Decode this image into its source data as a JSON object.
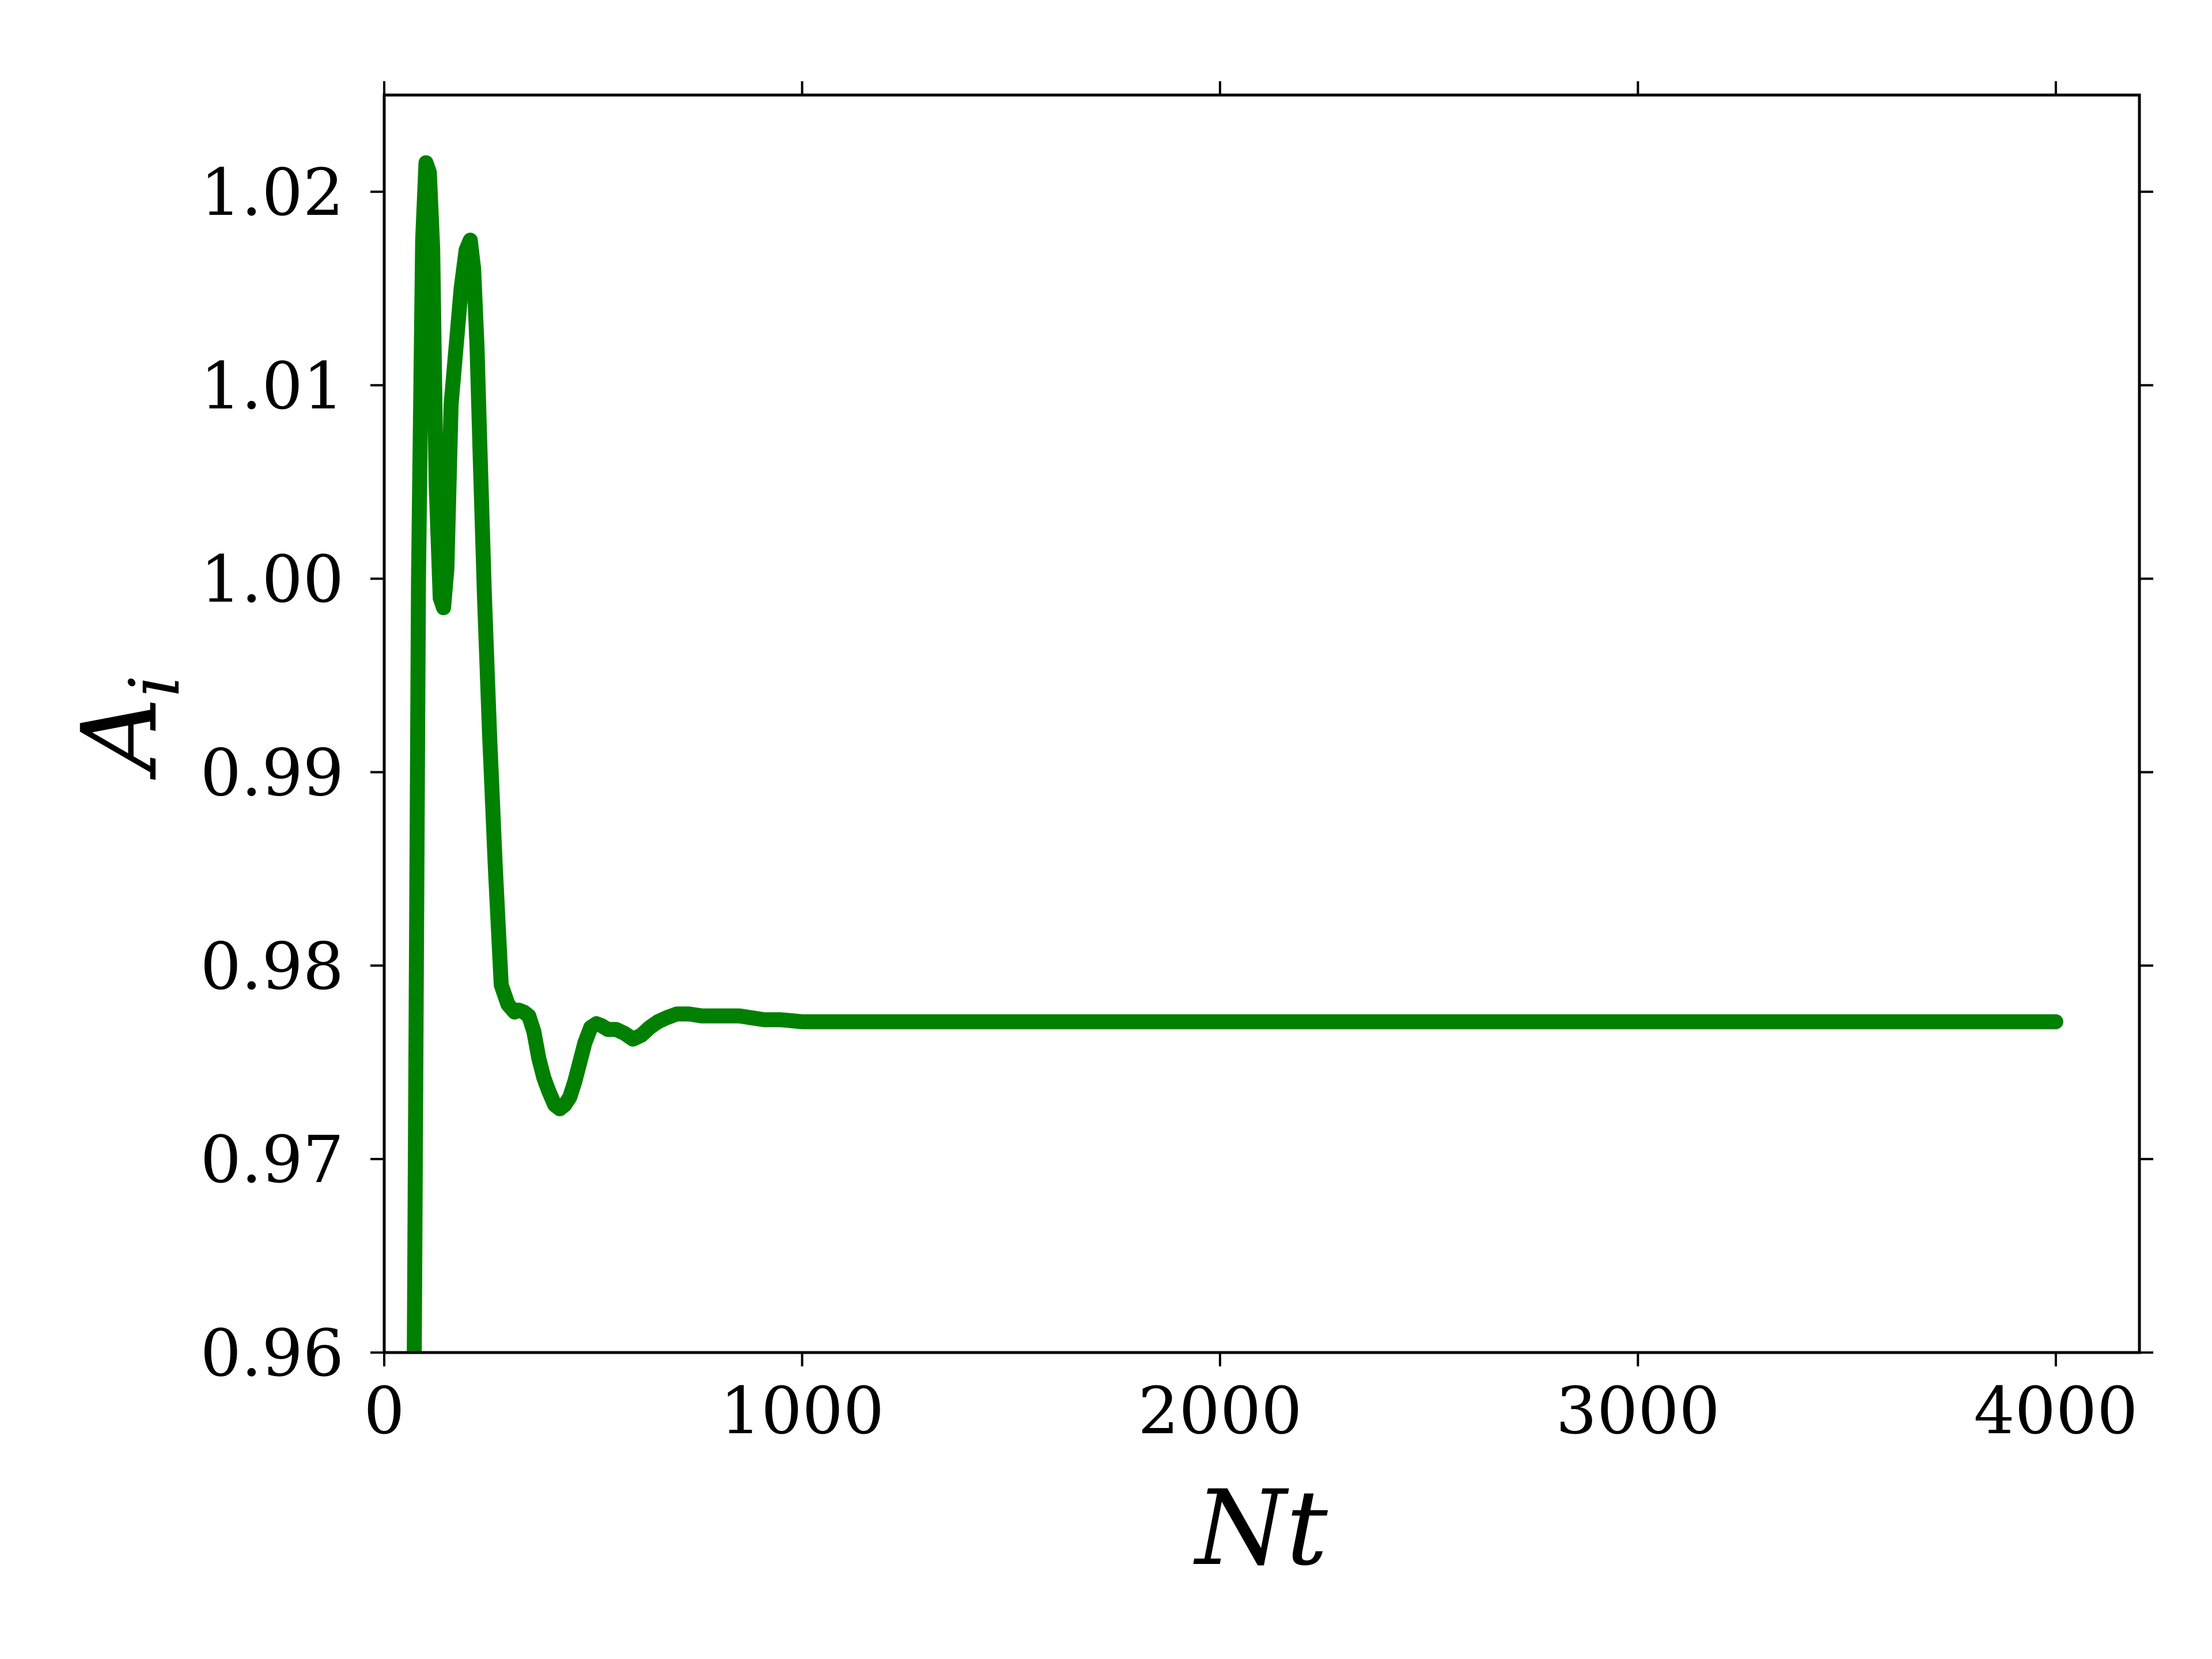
{
  "chart_data": {
    "type": "line",
    "xlabel": "Nt",
    "ylabel": "A",
    "ylabel_subscript": "i",
    "xlim": [
      0,
      4200
    ],
    "ylim": [
      0.96,
      1.025
    ],
    "x_ticks": [
      0,
      1000,
      2000,
      3000,
      4000
    ],
    "x_tick_labels": [
      "0",
      "1000",
      "2000",
      "3000",
      "4000"
    ],
    "y_ticks": [
      0.96,
      0.97,
      0.98,
      0.99,
      1.0,
      1.01,
      1.02
    ],
    "y_tick_labels": [
      "0.96",
      "0.97",
      "0.98",
      "0.99",
      "1.00",
      "1.01",
      "1.02"
    ],
    "grid": false,
    "line_color": "#008000",
    "series": [
      {
        "x": [
          60,
          72,
          82,
          92,
          100,
          108,
          116,
          124,
          134,
          142,
          150,
          160,
          172,
          184,
          196,
          206,
          214,
          222,
          230,
          240,
          252,
          266,
          280,
          296,
          312,
          322,
          334,
          346,
          358,
          370,
          382,
          394,
          408,
          420,
          432,
          444,
          456,
          468,
          480,
          494,
          508,
          520,
          535,
          555,
          575,
          595,
          615,
          635,
          655,
          675,
          700,
          730,
          760,
          790,
          820,
          850,
          880,
          910,
          950,
          1000,
          1050,
          1100,
          1150,
          1200,
          1300,
          1400,
          1600,
          2000,
          2500,
          3000,
          3500,
          4000
        ],
        "values": [
          0.9575,
          0.96,
          1.0,
          1.0175,
          1.0215,
          1.021,
          1.017,
          1.005,
          0.999,
          0.9985,
          1.0005,
          1.009,
          1.012,
          1.015,
          1.017,
          1.0175,
          1.016,
          1.012,
          1.006,
          0.999,
          0.992,
          0.985,
          0.979,
          0.978,
          0.9776,
          0.9777,
          0.9776,
          0.9774,
          0.9766,
          0.9752,
          0.9742,
          0.9735,
          0.9728,
          0.9726,
          0.9728,
          0.9732,
          0.974,
          0.975,
          0.976,
          0.9768,
          0.977,
          0.9769,
          0.9767,
          0.9767,
          0.9765,
          0.9762,
          0.9764,
          0.9768,
          0.9771,
          0.9773,
          0.9775,
          0.9775,
          0.9774,
          0.9774,
          0.9774,
          0.9774,
          0.9773,
          0.9772,
          0.9772,
          0.9771,
          0.9771,
          0.9771,
          0.9771,
          0.9771,
          0.9771,
          0.9771,
          0.9771,
          0.9771,
          0.9771,
          0.9771,
          0.9771,
          0.9771
        ]
      }
    ]
  }
}
